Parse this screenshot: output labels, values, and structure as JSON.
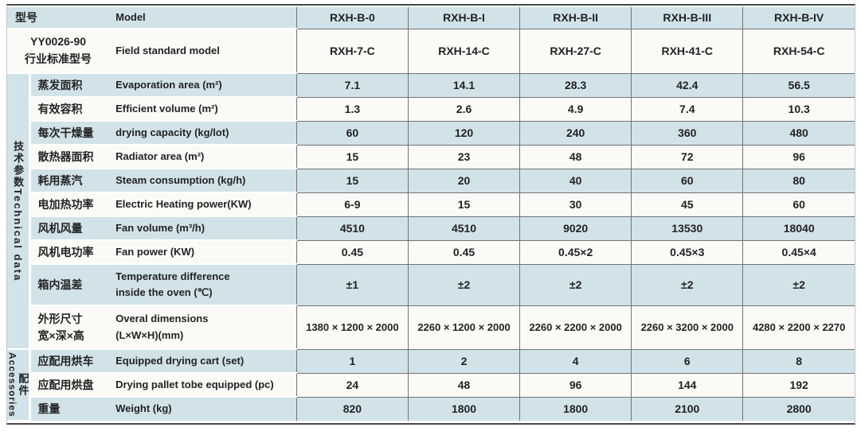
{
  "colors": {
    "stripe_blue": "#d1e3e9",
    "stripe_white": "#fbfaf7",
    "border_dark": "#46494b",
    "border_gray": "#6f7473",
    "text": "#232323"
  },
  "header": {
    "row_model": {
      "cn": "型号",
      "en": "Model",
      "values": [
        "RXH-B-0",
        "RXH-B-I",
        "RXH-B-II",
        "RXH-B-III",
        "RXH-B-IV"
      ]
    },
    "row_standard": {
      "cn_line1": "YY0026-90",
      "cn_line2": "行业标准型号",
      "en": "Field standard model",
      "values": [
        "RXH-7-C",
        "RXH-14-C",
        "RXH-27-C",
        "RXH-41-C",
        "RXH-54-C"
      ]
    }
  },
  "sections": [
    {
      "id": "technical-data",
      "vertical_label": "技术参数Technical data",
      "rows": [
        {
          "id": "evaporation-area",
          "cn": "蒸发面积",
          "en": "Evaporation area (m²)",
          "values": [
            "7.1",
            "14.1",
            "28.3",
            "42.4",
            "56.5"
          ]
        },
        {
          "id": "efficient-volume",
          "cn": "有效容积",
          "en": "Efficient volume (m²)",
          "values": [
            "1.3",
            "2.6",
            "4.9",
            "7.4",
            "10.3"
          ]
        },
        {
          "id": "drying-capacity",
          "cn": "每次干燥量",
          "en": "drying capacity (kg/lot)",
          "values": [
            "60",
            "120",
            "240",
            "360",
            "480"
          ]
        },
        {
          "id": "radiator-area",
          "cn": "散热器面积",
          "en": "Radiator area (m²)",
          "values": [
            "15",
            "23",
            "48",
            "72",
            "96"
          ]
        },
        {
          "id": "steam-consumption",
          "cn": "耗用蒸汽",
          "en": "Steam consumption (kg/h)",
          "values": [
            "15",
            "20",
            "40",
            "60",
            "80"
          ]
        },
        {
          "id": "electric-heating-power",
          "cn": "电加热功率",
          "en": "Electric Heating power(KW)",
          "values": [
            "6-9",
            "15",
            "30",
            "45",
            "60"
          ]
        },
        {
          "id": "fan-volume",
          "cn": "风机风量",
          "en": "Fan volume (m³/h)",
          "values": [
            "4510",
            "4510",
            "9020",
            "13530",
            "18040"
          ]
        },
        {
          "id": "fan-power",
          "cn": "风机电功率",
          "en": "Fan power (KW)",
          "values": [
            "0.45",
            "0.45",
            "0.45×2",
            "0.45×3",
            "0.45×4"
          ]
        },
        {
          "id": "temperature-difference",
          "cn": "箱内温差",
          "en": "Temperature difference",
          "en2": "inside the oven (℃)",
          "values": [
            "±1",
            "±2",
            "±2",
            "±2",
            "±2"
          ]
        },
        {
          "id": "overall-dimensions",
          "cn": "外形尺寸",
          "cn2": "宽×深×高",
          "en": "Overal dimensions",
          "en2": "(L×W×H)(mm)",
          "values": [
            "1380 × 1200 × 2000",
            "2260 × 1200 × 2000",
            "2260 × 2200 × 2000",
            "2260 × 3200 × 2000",
            "4280 × 2200 × 2270"
          ]
        }
      ]
    },
    {
      "id": "accessories",
      "vertical_label_en": "Accessories",
      "vertical_label_cn": "配件",
      "rows": [
        {
          "id": "drying-cart",
          "cn": "应配用烘车",
          "en": "Equipped drying cart (set)",
          "values": [
            "1",
            "2",
            "4",
            "6",
            "8"
          ]
        },
        {
          "id": "drying-pallet",
          "cn": "应配用烘盘",
          "en": "Drying pallet tobe equipped (pc)",
          "values": [
            "24",
            "48",
            "96",
            "144",
            "192"
          ]
        },
        {
          "id": "weight",
          "cn": "重量",
          "en": "Weight (kg)",
          "values": [
            "820",
            "1800",
            "1800",
            "2100",
            "2800"
          ]
        }
      ]
    }
  ]
}
